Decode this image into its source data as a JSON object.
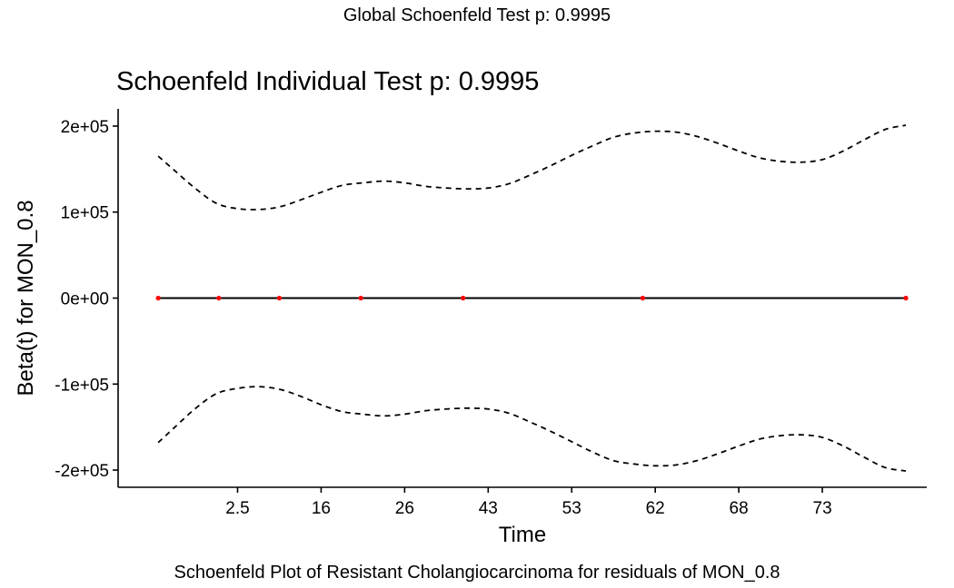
{
  "header": {
    "global_title": "Global Schoenfeld Test p: 0.9995",
    "plot_title": "Schoenfeld Individual Test p: 0.9995",
    "caption": "Schoenfeld Plot of Resistant Cholangiocarcinoma for residuals of MON_0.8"
  },
  "chart_data": {
    "type": "line",
    "title": "Schoenfeld Individual Test p: 0.9995",
    "xlabel": "Time",
    "ylabel": "Beta(t) for MON_0.8",
    "grid": false,
    "x_tick_labels": [
      "2.5",
      "16",
      "26",
      "43",
      "53",
      "62",
      "68",
      "73"
    ],
    "x_tick_positions": [
      2,
      4,
      6,
      8,
      10,
      12,
      14,
      16
    ],
    "xlim": [
      -0.86,
      18.5
    ],
    "y_ticks": [
      -200000,
      -100000,
      0,
      100000,
      200000
    ],
    "y_tick_labels": [
      "-2e+05",
      "-1e+05",
      "0e+00",
      "1e+05",
      "2e+05"
    ],
    "ylim": [
      -220000,
      220000
    ],
    "series": [
      {
        "role": "fit",
        "style": "solid",
        "color": "#000000",
        "x": [
          0.1,
          18.0
        ],
        "y": [
          0,
          0
        ]
      },
      {
        "role": "upper-band",
        "style": "dashed",
        "color": "#000000",
        "x": [
          0.1,
          0.5,
          1.0,
          1.5,
          2.0,
          2.5,
          3.0,
          3.5,
          4.0,
          4.5,
          5.0,
          5.5,
          6.0,
          6.5,
          7.0,
          7.5,
          8.0,
          8.5,
          9.0,
          9.5,
          10.0,
          10.5,
          11.0,
          11.5,
          12.0,
          12.5,
          13.0,
          13.5,
          14.0,
          14.5,
          15.0,
          15.5,
          16.0,
          16.5,
          17.0,
          17.5,
          18.0
        ],
        "y": [
          165000,
          148000,
          127000,
          110000,
          104000,
          103000,
          106000,
          114000,
          123000,
          131000,
          134000,
          136000,
          134000,
          130000,
          128000,
          127000,
          128000,
          133000,
          143000,
          154000,
          166000,
          177000,
          187000,
          192000,
          194000,
          193000,
          188000,
          180000,
          171000,
          163000,
          159000,
          158000,
          161000,
          171000,
          184000,
          196000,
          201000
        ]
      },
      {
        "role": "lower-band",
        "style": "dashed",
        "color": "#000000",
        "x": [
          0.1,
          0.5,
          1.0,
          1.5,
          2.0,
          2.5,
          3.0,
          3.5,
          4.0,
          4.5,
          5.0,
          5.5,
          6.0,
          6.5,
          7.0,
          7.5,
          8.0,
          8.5,
          9.0,
          9.5,
          10.0,
          10.5,
          11.0,
          11.5,
          12.0,
          12.5,
          13.0,
          13.5,
          14.0,
          14.5,
          15.0,
          15.5,
          16.0,
          16.5,
          17.0,
          17.5,
          18.0
        ],
        "y": [
          -168000,
          -150000,
          -128000,
          -111000,
          -105000,
          -103000,
          -106000,
          -114000,
          -124000,
          -132000,
          -135000,
          -137000,
          -135000,
          -131000,
          -129000,
          -128000,
          -129000,
          -134000,
          -144000,
          -155000,
          -167000,
          -179000,
          -189000,
          -193000,
          -195000,
          -194000,
          -189000,
          -181000,
          -172000,
          -164000,
          -160000,
          -159000,
          -162000,
          -172000,
          -185000,
          -197000,
          -201000
        ]
      },
      {
        "role": "residual-points",
        "style": "points",
        "color": "#ff0000",
        "x": [
          0.1,
          1.55,
          3.0,
          4.95,
          7.4,
          11.7,
          18.0
        ],
        "y": [
          0,
          0,
          0,
          0,
          0,
          0,
          0
        ]
      }
    ]
  }
}
